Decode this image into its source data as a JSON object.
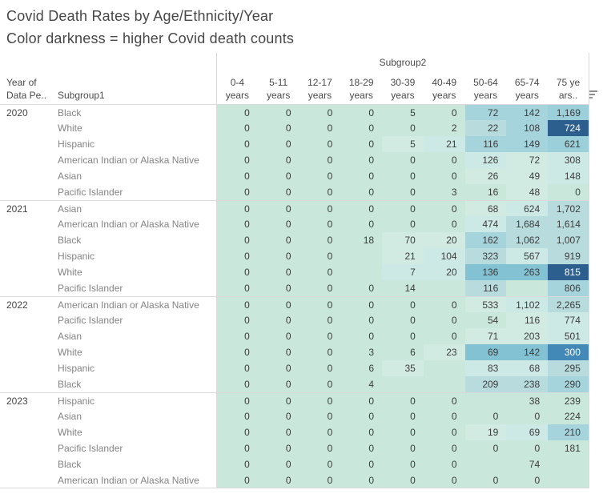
{
  "title": "Covid Death Rates by Age/Ethnicity/Year",
  "subtitle": "Color darkness = higher Covid death counts",
  "header": {
    "column_group_label": "Subgroup2",
    "row_field_year_line1": "Year of",
    "row_field_year_line2": "Data Pe..",
    "row_field_subgroup": "Subgroup1",
    "sort_icon": "sort-bars-icon"
  },
  "palette": {
    "0": "#c9e7db",
    "1": "#d2ebe2",
    "2": "#cde9e6",
    "3": "#b8dcdd",
    "4": "#a6d4dc",
    "5": "#9bcfd9",
    "6": "#82c2d3",
    "7": "#4289b7",
    "8": "#2d5f8e"
  },
  "white_text_shades": [
    7,
    8
  ],
  "chart_data": {
    "type": "heatmap",
    "title": "Covid Death Rates by Age/Ethnicity/Year",
    "subtitle": "Color darkness = higher Covid death counts",
    "column_field": "Subgroup2",
    "row_fields": [
      "Year of Data Pe..",
      "Subgroup1"
    ],
    "columns": [
      {
        "line1": "0-4",
        "line2": "years"
      },
      {
        "line1": "5-11",
        "line2": "years"
      },
      {
        "line1": "12-17",
        "line2": "years"
      },
      {
        "line1": "18-29",
        "line2": "years"
      },
      {
        "line1": "30-39",
        "line2": "years"
      },
      {
        "line1": "40-49",
        "line2": "years"
      },
      {
        "line1": "50-64",
        "line2": "years"
      },
      {
        "line1": "65-74",
        "line2": "years"
      },
      {
        "line1": "75 ye",
        "line2": "ars.."
      }
    ],
    "legend_note": "cell shade index maps to palette; higher = darker = more Covid deaths",
    "groups": [
      {
        "year": "2020",
        "rows": [
          {
            "label": "Black",
            "values": [
              "0",
              "0",
              "0",
              "0",
              "5",
              "0",
              "72",
              "142",
              "1,169"
            ],
            "shades": [
              0,
              0,
              0,
              0,
              0,
              0,
              4,
              4,
              5
            ]
          },
          {
            "label": "White",
            "values": [
              "0",
              "0",
              "0",
              "0",
              "0",
              "2",
              "22",
              "108",
              "724"
            ],
            "shades": [
              0,
              0,
              0,
              0,
              0,
              0,
              3,
              4,
              8
            ]
          },
          {
            "label": "Hispanic",
            "values": [
              "0",
              "0",
              "0",
              "0",
              "5",
              "21",
              "116",
              "149",
              "621"
            ],
            "shades": [
              0,
              0,
              0,
              0,
              1,
              2,
              4,
              4,
              5
            ]
          },
          {
            "label": "American Indian or Alaska Native",
            "values": [
              "0",
              "0",
              "0",
              "0",
              "0",
              "0",
              "126",
              "72",
              "308"
            ],
            "shades": [
              0,
              0,
              0,
              0,
              0,
              0,
              2,
              1,
              2
            ]
          },
          {
            "label": "Asian",
            "values": [
              "0",
              "0",
              "0",
              "0",
              "0",
              "0",
              "26",
              "49",
              "148"
            ],
            "shades": [
              0,
              0,
              0,
              0,
              0,
              0,
              1,
              1,
              2
            ]
          },
          {
            "label": "Pacific Islander",
            "values": [
              "0",
              "0",
              "0",
              "0",
              "0",
              "3",
              "16",
              "48",
              "0"
            ],
            "shades": [
              0,
              0,
              0,
              0,
              0,
              0,
              0,
              1,
              0
            ]
          }
        ]
      },
      {
        "year": "2021",
        "rows": [
          {
            "label": "Asian",
            "values": [
              "0",
              "0",
              "0",
              "0",
              "0",
              "0",
              "68",
              "624",
              "1,702"
            ],
            "shades": [
              0,
              0,
              0,
              0,
              0,
              0,
              1,
              2,
              3
            ]
          },
          {
            "label": "American Indian or Alaska Native",
            "values": [
              "0",
              "0",
              "0",
              "0",
              "0",
              "0",
              "474",
              "1,684",
              "1,614"
            ],
            "shades": [
              0,
              0,
              0,
              0,
              0,
              0,
              2,
              3,
              3
            ]
          },
          {
            "label": "Black",
            "values": [
              "0",
              "0",
              "0",
              "18",
              "70",
              "20",
              "162",
              "1,062",
              "1,007"
            ],
            "shades": [
              0,
              0,
              0,
              0,
              1,
              1,
              4,
              3,
              3
            ]
          },
          {
            "label": "Hispanic",
            "values": [
              "0",
              "0",
              "0",
              "",
              "21",
              "104",
              "323",
              "567",
              "919"
            ],
            "shades": [
              0,
              0,
              0,
              0,
              1,
              2,
              3,
              2,
              3
            ]
          },
          {
            "label": "White",
            "values": [
              "0",
              "0",
              "0",
              "",
              "7",
              "20",
              "136",
              "263",
              "815"
            ],
            "shades": [
              0,
              0,
              0,
              0,
              2,
              2,
              6,
              6,
              8
            ]
          },
          {
            "label": "Pacific Islander",
            "values": [
              "0",
              "0",
              "0",
              "0",
              "14",
              "",
              "116",
              "",
              "806"
            ],
            "shades": [
              0,
              0,
              0,
              0,
              0,
              0,
              3,
              0,
              4
            ]
          }
        ]
      },
      {
        "year": "2022",
        "rows": [
          {
            "label": "American Indian or Alaska Native",
            "values": [
              "0",
              "0",
              "0",
              "0",
              "0",
              "0",
              "533",
              "1,102",
              "2,265"
            ],
            "shades": [
              0,
              0,
              0,
              0,
              0,
              0,
              1,
              2,
              3
            ]
          },
          {
            "label": "Pacific Islander",
            "values": [
              "0",
              "0",
              "0",
              "0",
              "0",
              "0",
              "54",
              "116",
              "774"
            ],
            "shades": [
              0,
              0,
              0,
              0,
              0,
              0,
              0,
              1,
              2
            ]
          },
          {
            "label": "Asian",
            "values": [
              "0",
              "0",
              "0",
              "0",
              "0",
              "0",
              "71",
              "203",
              "501"
            ],
            "shades": [
              0,
              0,
              0,
              0,
              0,
              0,
              1,
              1,
              2
            ]
          },
          {
            "label": "White",
            "values": [
              "0",
              "0",
              "0",
              "3",
              "6",
              "23",
              "69",
              "142",
              "300"
            ],
            "shades": [
              0,
              0,
              0,
              0,
              0,
              1,
              6,
              6,
              7
            ]
          },
          {
            "label": "Hispanic",
            "values": [
              "0",
              "0",
              "0",
              "6",
              "35",
              "",
              "83",
              "68",
              "295"
            ],
            "shades": [
              0,
              0,
              0,
              0,
              1,
              0,
              2,
              2,
              3
            ]
          },
          {
            "label": "Black",
            "values": [
              "0",
              "0",
              "0",
              "4",
              "",
              "",
              "209",
              "238",
              "290"
            ],
            "shades": [
              0,
              0,
              0,
              0,
              0,
              0,
              3,
              3,
              4
            ]
          }
        ]
      },
      {
        "year": "2023",
        "rows": [
          {
            "label": "Hispanic",
            "values": [
              "0",
              "0",
              "0",
              "0",
              "0",
              "0",
              "",
              "38",
              "239"
            ],
            "shades": [
              0,
              0,
              0,
              0,
              0,
              0,
              0,
              0,
              0
            ]
          },
          {
            "label": "Asian",
            "values": [
              "0",
              "0",
              "0",
              "0",
              "0",
              "0",
              "0",
              "0",
              "224"
            ],
            "shades": [
              0,
              0,
              0,
              0,
              0,
              0,
              0,
              0,
              0
            ]
          },
          {
            "label": "White",
            "values": [
              "0",
              "0",
              "0",
              "0",
              "0",
              "0",
              "19",
              "69",
              "210"
            ],
            "shades": [
              0,
              0,
              0,
              0,
              0,
              0,
              1,
              2,
              4
            ]
          },
          {
            "label": "Pacific Islander",
            "values": [
              "0",
              "0",
              "0",
              "0",
              "0",
              "0",
              "0",
              "0",
              "181"
            ],
            "shades": [
              0,
              0,
              0,
              0,
              0,
              0,
              0,
              0,
              0
            ]
          },
          {
            "label": "Black",
            "values": [
              "0",
              "0",
              "0",
              "0",
              "0",
              "0",
              "",
              "74",
              ""
            ],
            "shades": [
              0,
              0,
              0,
              0,
              0,
              0,
              0,
              0,
              0
            ]
          },
          {
            "label": "American Indian or Alaska Native",
            "values": [
              "0",
              "0",
              "0",
              "0",
              "0",
              "0",
              "0",
              "0",
              ""
            ],
            "shades": [
              0,
              0,
              0,
              0,
              0,
              0,
              0,
              0,
              0
            ]
          }
        ]
      }
    ]
  }
}
